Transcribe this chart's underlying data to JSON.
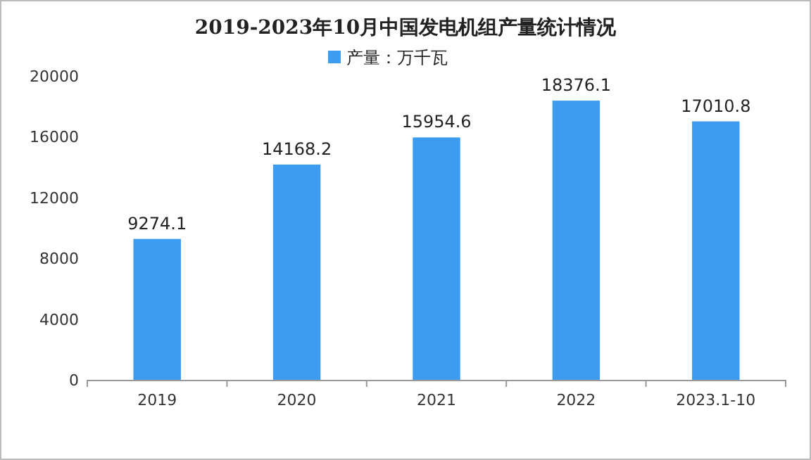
{
  "chart_data": {
    "type": "bar",
    "title": "2019-2023年10月中国发电机组产量统计情况",
    "categories": [
      "2019",
      "2020",
      "2021",
      "2022",
      "2023.1-10"
    ],
    "series": [
      {
        "name": "产量：万千瓦",
        "color": "#3d9cf0",
        "values": [
          9274.1,
          14168.2,
          15954.6,
          18376.1,
          17010.8
        ]
      }
    ],
    "ylim": [
      0,
      20000
    ],
    "yticks": [
      0,
      4000,
      8000,
      12000,
      16000,
      20000
    ],
    "data_labels": true,
    "legend": "top"
  }
}
